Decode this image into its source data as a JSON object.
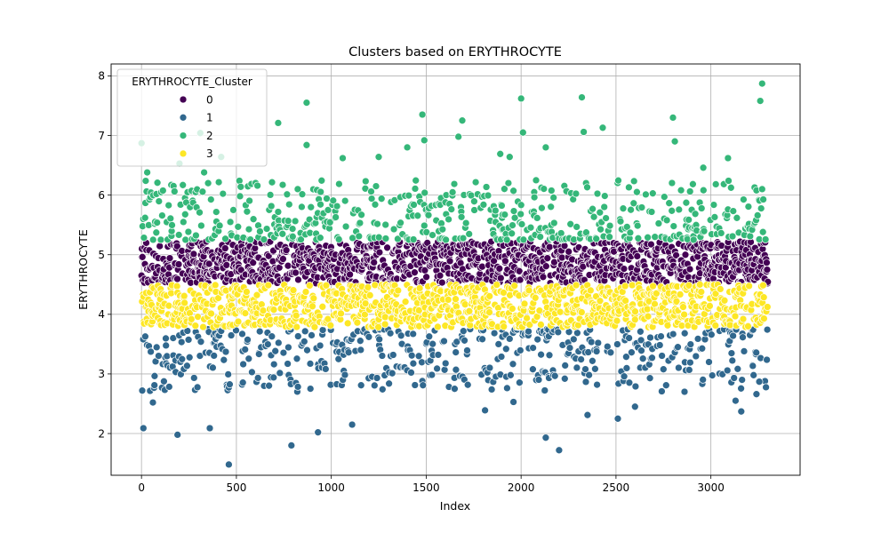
{
  "chart_data": {
    "type": "scatter",
    "title": "Clusters based on ERYTHROCYTE",
    "xlabel": "Index",
    "ylabel": "ERYTHROCYTE",
    "xlim": [
      -160,
      3470
    ],
    "ylim": [
      1.3,
      8.2
    ],
    "xticks": [
      "0",
      "500",
      "1000",
      "1500",
      "2000",
      "2500",
      "3000"
    ],
    "yticks": [
      "2",
      "3",
      "4",
      "5",
      "6",
      "7",
      "8"
    ],
    "grid": true,
    "legend": {
      "title": "ERYTHROCYTE_Cluster",
      "position": "top-left",
      "entries": [
        "0",
        "1",
        "2",
        "3"
      ]
    },
    "series": [
      {
        "name": "0",
        "color": "#440154",
        "bounds": [
          4.5,
          5.25
        ],
        "points": []
      },
      {
        "name": "1",
        "color": "#31688e",
        "bounds": [
          2.5,
          3.75
        ],
        "points": [
          [
            10,
            2.09
          ],
          [
            60,
            2.52
          ],
          [
            190,
            1.98
          ],
          [
            360,
            2.09
          ],
          [
            460,
            1.48
          ],
          [
            790,
            1.8
          ],
          [
            930,
            2.02
          ],
          [
            1110,
            2.15
          ],
          [
            1810,
            2.39
          ],
          [
            1960,
            2.53
          ],
          [
            2130,
            1.93
          ],
          [
            2200,
            1.72
          ],
          [
            2350,
            2.31
          ],
          [
            2510,
            2.25
          ],
          [
            2600,
            2.45
          ],
          [
            3130,
            2.55
          ],
          [
            3160,
            2.37
          ],
          [
            3240,
            2.66
          ],
          [
            3255,
            2.87
          ]
        ]
      },
      {
        "name": "2",
        "color": "#35b779",
        "bounds": [
          5.25,
          6.0
        ],
        "points": [
          [
            0,
            6.87
          ],
          [
            30,
            6.38
          ],
          [
            200,
            6.53
          ],
          [
            310,
            7.04
          ],
          [
            330,
            6.38
          ],
          [
            420,
            6.64
          ],
          [
            720,
            7.21
          ],
          [
            870,
            7.55
          ],
          [
            870,
            6.84
          ],
          [
            1060,
            6.62
          ],
          [
            1250,
            6.64
          ],
          [
            1400,
            6.8
          ],
          [
            1480,
            7.35
          ],
          [
            1490,
            6.92
          ],
          [
            1690,
            7.25
          ],
          [
            1670,
            6.98
          ],
          [
            1890,
            6.69
          ],
          [
            1940,
            6.64
          ],
          [
            2000,
            7.62
          ],
          [
            2010,
            7.05
          ],
          [
            2130,
            6.8
          ],
          [
            2320,
            7.64
          ],
          [
            2330,
            7.06
          ],
          [
            2430,
            7.13
          ],
          [
            2800,
            7.3
          ],
          [
            2810,
            6.9
          ],
          [
            2960,
            6.46
          ],
          [
            3090,
            6.62
          ],
          [
            3260,
            7.58
          ],
          [
            3270,
            7.87
          ]
        ]
      },
      {
        "name": "3",
        "color": "#fde725",
        "bounds": [
          3.75,
          4.5
        ],
        "points": []
      }
    ],
    "x_max_index": 3300
  }
}
